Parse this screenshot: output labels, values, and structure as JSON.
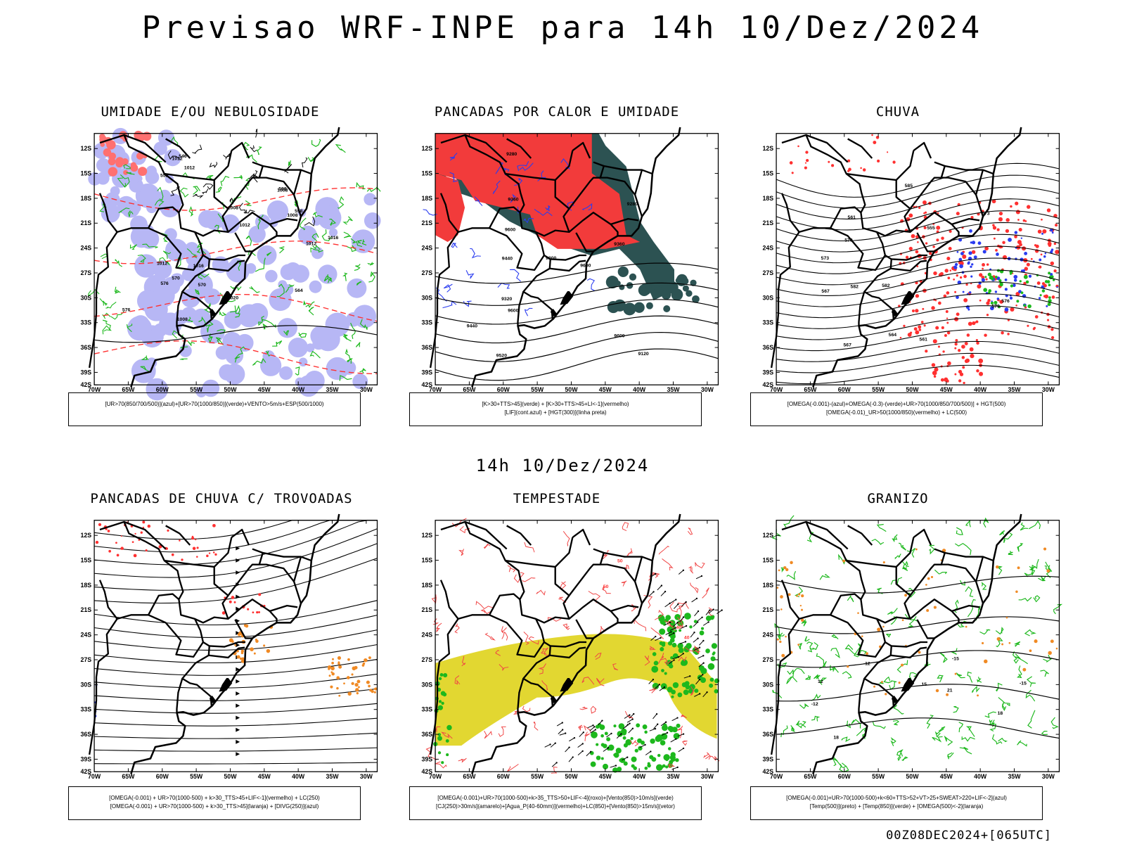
{
  "page": {
    "title": "Previsao WRF-INPE  para 14h 10/Dez/2024",
    "subtitle": "14h 10/Dez/2024",
    "footer": "00Z08DEC2024+[065UTC]"
  },
  "axes": {
    "lat_labels": [
      "12S",
      "15S",
      "18S",
      "21S",
      "24S",
      "27S",
      "30S",
      "33S",
      "36S",
      "39S",
      "42S"
    ],
    "lon_labels": [
      "70W",
      "65W",
      "60W",
      "55W",
      "50W",
      "45W",
      "40W",
      "35W",
      "30W"
    ]
  },
  "colors": {
    "red": "#ff3030",
    "green": "#1db81d",
    "blue": "#2a3cf0",
    "lavender": "#b7b7f5",
    "teal": "#274f4f",
    "yellow": "#e2d731",
    "orange": "#f08a24",
    "black": "#000000"
  },
  "panels": [
    {
      "title": "UMIDADE E/OU NEBULOSIDADE",
      "legend": [
        "[UR>70(850/700/500)](azul)+[UR>70(1000/850)](verde)+VENTO>5m/s+ESP(500/1000)"
      ],
      "contour_labels": [
        "1008",
        "1008",
        "1008",
        "1008",
        "1012",
        "1012",
        "1012",
        "1016",
        "1016",
        "1020",
        "1012",
        "1012",
        "576",
        "576",
        "570",
        "570",
        "564",
        "558",
        "552",
        "546",
        "588"
      ]
    },
    {
      "title": "PANCADAS POR CALOR E UMIDADE",
      "legend": [
        "[K>30+TTS>45](verde) + [K>30+TTS>45+LI<-1](vermelho)",
        "[LIF](cont.azul) + [HGT(300)](linha preta)"
      ],
      "contour_labels": [
        "9600",
        "9600",
        "9600",
        "9600",
        "9520",
        "9440",
        "9440",
        "9360",
        "9320",
        "9280",
        "9200",
        "9120",
        "9360",
        "9280"
      ]
    },
    {
      "title": "CHUVA",
      "legend": [
        "[OMEGA(-0.001)-(azul)+OMEGA(-0.3)-(verde)+UR>70(1000/850/700/500)] + HGT(500)",
        "[OMEGA(-0.01)_UR>50(1000/850)(vermelho) + LC(500)"
      ],
      "contour_labels": [
        "582",
        "585",
        "582",
        "576",
        "579",
        "573",
        "573",
        "570",
        "567",
        "567",
        "564",
        "561",
        "561",
        "555"
      ]
    },
    {
      "title": "PANCADAS DE CHUVA C/ TROVOADAS",
      "legend": [
        "[OMEGA(-0.001) + UR>70(1000-500) + k>30_TTS>45+LIF<-1](vermelho) + LC(250)",
        "[OMEGA(-0.001) + UR>70(1000-500) + k>30_TTS>45](laranja) + [DIVG(250)](azul)"
      ],
      "contour_labels": []
    },
    {
      "title": "TEMPESTADE",
      "legend": [
        "[OMEGA(-0.001)+UR>70(1000-500)+k>35_TTS>50+LIF<-4](roxo)+[Vento(850)>10m/s](verde)",
        "[CJ(250)>30m/s](amarelo)+[Agua_P(40-60mm)](vermelho)+LC(850)+[Vento(850)>15m/s](vetor)"
      ],
      "contour_labels": [
        "50",
        "40",
        "50",
        "40"
      ]
    },
    {
      "title": "GRANIZO",
      "legend": [
        "[OMEGA(-0.001)+UR>70(1000-500)+k<60+TTS>52+VT>25+SWEAT>220+LIF<-2](azul)",
        "[Temp(500)](preto) + [Temp(850)](verde) + [OMEGA(500)<-2](laranja)"
      ],
      "contour_labels": [
        "-12",
        "-15",
        "-12",
        "-15",
        "12",
        "18",
        "18",
        "21",
        "15"
      ]
    }
  ]
}
